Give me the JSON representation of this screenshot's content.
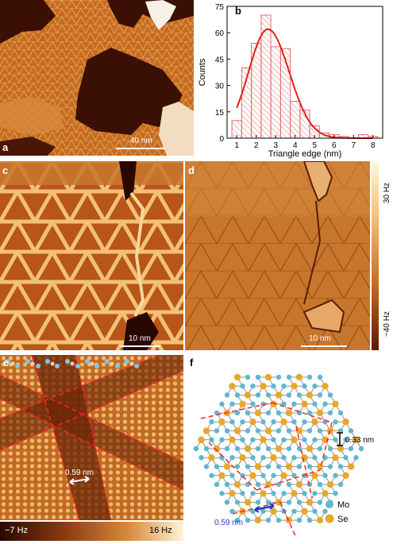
{
  "panels": {
    "a": {
      "label": "a",
      "scalebar": "40 nm"
    },
    "b": {
      "label": "b"
    },
    "c": {
      "label": "c",
      "scalebar": "10 nm"
    },
    "d": {
      "label": "d",
      "scalebar": "10 nm"
    },
    "e": {
      "label": "e",
      "distance": "0.59 nm"
    },
    "f": {
      "label": "f",
      "distance_blue": "0.59 nm",
      "distance_black": "0.33 nm",
      "legend": [
        {
          "name": "Mo",
          "color": "#5fb7cf"
        },
        {
          "name": "Se",
          "color": "#e7a72c"
        }
      ]
    }
  },
  "colorbar_d": {
    "top": "30 Hz",
    "bottom": "−40 Hz"
  },
  "colorbar_e": {
    "left": "−7 Hz",
    "right": "16 Hz"
  },
  "chart_data": {
    "type": "bar",
    "title": "",
    "xlabel": "Triangle edge (nm)",
    "ylabel": "Counts",
    "xlim": [
      0.5,
      8.5
    ],
    "ylim": [
      0,
      75
    ],
    "xticks": [
      1,
      2,
      3,
      4,
      5,
      6,
      7,
      8
    ],
    "yticks": [
      0,
      15,
      30,
      45,
      60,
      75
    ],
    "bin_width": 0.5,
    "bin_centers": [
      1.0,
      1.5,
      2.0,
      2.5,
      3.0,
      3.5,
      4.0,
      4.5,
      5.0,
      5.5,
      6.0,
      6.5,
      7.0,
      7.5,
      8.0
    ],
    "values": [
      10,
      40,
      54,
      70,
      52,
      51,
      21,
      16,
      7,
      3,
      2,
      1,
      0,
      2,
      1
    ],
    "fit_curve": {
      "type": "gaussian-like",
      "peak_x": 2.6,
      "peak_y": 62
    }
  }
}
